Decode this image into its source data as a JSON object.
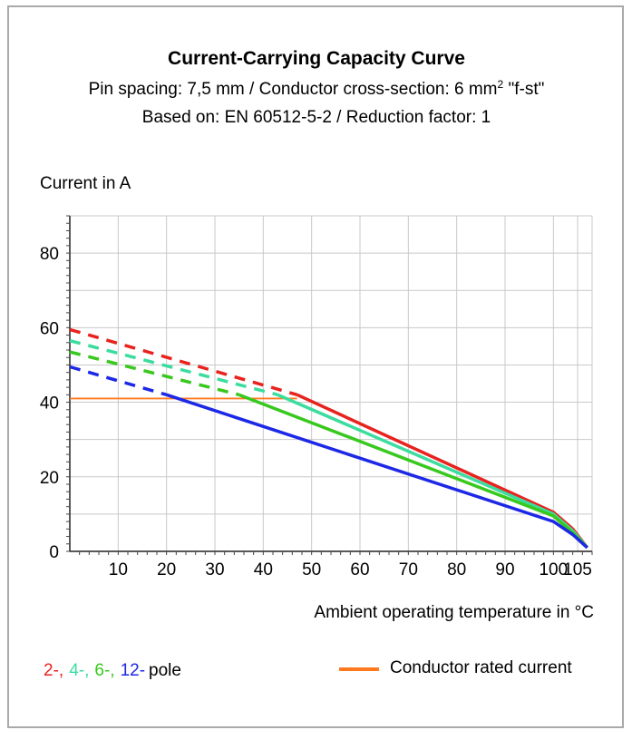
{
  "chart_data": {
    "type": "line",
    "title": "Current-Carrying Capacity Curve",
    "subtitle_line1_prefix": "Pin spacing: 7,5 mm / Conductor cross-section: 6 mm",
    "subtitle_line1_sup": "2",
    "subtitle_line1_suffix": " \"f-st\"",
    "subtitle_line2": "Based on: EN 60512-5-2 / Reduction factor: 1",
    "ylabel": "Current in A",
    "xlabel": "Ambient operating temperature in °C",
    "xlim": [
      0,
      108
    ],
    "ylim": [
      0,
      90
    ],
    "x_ticks": [
      10,
      20,
      30,
      40,
      50,
      60,
      70,
      80,
      90,
      100,
      105
    ],
    "y_ticks": [
      0,
      20,
      40,
      60,
      80
    ],
    "grid": true,
    "series": [
      {
        "name": "2-",
        "color": "#e8231f",
        "dashed": [
          [
            0,
            59.5
          ],
          [
            47,
            42
          ]
        ],
        "solid": [
          [
            47,
            42
          ],
          [
            100,
            10.5
          ],
          [
            104,
            6
          ],
          [
            107,
            1
          ]
        ]
      },
      {
        "name": "4-",
        "color": "#3cdc9f",
        "dashed": [
          [
            0,
            56.5
          ],
          [
            43,
            42
          ]
        ],
        "solid": [
          [
            43,
            42
          ],
          [
            100,
            10
          ],
          [
            104,
            5.5
          ],
          [
            107,
            1
          ]
        ]
      },
      {
        "name": "6-",
        "color": "#38c81e",
        "dashed": [
          [
            0,
            53.5
          ],
          [
            35,
            42
          ]
        ],
        "solid": [
          [
            35,
            42
          ],
          [
            100,
            9.5
          ],
          [
            104,
            5
          ],
          [
            107,
            1
          ]
        ]
      },
      {
        "name": "12-",
        "color": "#1c28e6",
        "dashed": [
          [
            0,
            49.5
          ],
          [
            20,
            42
          ]
        ],
        "solid": [
          [
            20,
            42
          ],
          [
            100,
            8
          ],
          [
            104,
            4.5
          ],
          [
            107,
            1
          ]
        ]
      }
    ],
    "rated_current": {
      "name": "Conductor rated current",
      "color": "#ff7a1f",
      "value": 41,
      "x_end": 47
    },
    "legend": {
      "pole_labels": [
        {
          "text": "2-,",
          "color": "#e8231f"
        },
        {
          "text": "4-,",
          "color": "#3cdc9f"
        },
        {
          "text": "6-,",
          "color": "#38c81e"
        },
        {
          "text": "12-",
          "color": "#1c28e6"
        }
      ],
      "pole_suffix": "pole",
      "rated_label": "Conductor rated current",
      "placement": "bottom"
    }
  }
}
